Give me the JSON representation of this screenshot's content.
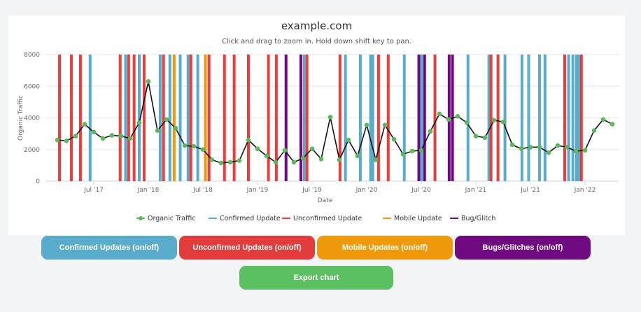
{
  "title": "example.com",
  "subtitle": "Click and drag to zoom in. Hold down shift key to pan.",
  "colors": {
    "traffic_line": "#111111",
    "traffic_marker": "#5cb85c",
    "confirmed": "#5aaccc",
    "unconfirmed": "#ec3c3c",
    "mobile": "#f0990a",
    "bug": "#700a80",
    "export": "#5cbf62"
  },
  "chart_data": {
    "type": "line",
    "xlabel": "Date",
    "ylabel": "Organic Traffic",
    "ylim": [
      0,
      8000
    ],
    "yticks": [
      "0",
      "2000",
      "4000",
      "6000",
      "8000"
    ],
    "xticks": [
      {
        "date": "2017-07",
        "label": "Jul '17"
      },
      {
        "date": "2018-01",
        "label": "Jan '18"
      },
      {
        "date": "2018-07",
        "label": "Jul '18"
      },
      {
        "date": "2019-01",
        "label": "Jan '19"
      },
      {
        "date": "2019-07",
        "label": "Jul '19"
      },
      {
        "date": "2020-01",
        "label": "Jan '20"
      },
      {
        "date": "2020-07",
        "label": "Jul '20"
      },
      {
        "date": "2021-01",
        "label": "Jan '21"
      },
      {
        "date": "2021-07",
        "label": "Jul '21"
      },
      {
        "date": "2022-01",
        "label": "Jan '22"
      }
    ],
    "grid": true,
    "legend": "bottom",
    "series": [
      {
        "name": "Organic Traffic",
        "start": "2017-03",
        "interval": "month",
        "values": [
          2600,
          2550,
          2850,
          3600,
          3100,
          2700,
          2900,
          2850,
          2700,
          3700,
          6300,
          3200,
          3900,
          3350,
          2250,
          2200,
          2000,
          1350,
          1150,
          1200,
          1300,
          2600,
          2050,
          1600,
          1200,
          1950,
          1200,
          1450,
          2050,
          1400,
          4050,
          1350,
          2600,
          1600,
          3550,
          1350,
          3550,
          2650,
          1700,
          1900,
          1950,
          3150,
          4250,
          3900,
          4100,
          3700,
          2850,
          2750,
          3850,
          3750,
          2300,
          2050,
          2150,
          2150,
          1800,
          2250,
          2150,
          1900,
          1950,
          3200,
          3900,
          3600
        ]
      }
    ],
    "updates": [
      [
        "2017-03-08",
        "unconfirmed"
      ],
      [
        "2017-04-17",
        "unconfirmed"
      ],
      [
        "2017-05-17",
        "unconfirmed"
      ],
      [
        "2017-06-19",
        "confirmed"
      ],
      [
        "2017-09-28",
        "unconfirmed"
      ],
      [
        "2017-10-16",
        "confirmed"
      ],
      [
        "2017-10-26",
        "unconfirmed"
      ],
      [
        "2017-11-14",
        "unconfirmed"
      ],
      [
        "2017-12-01",
        "confirmed"
      ],
      [
        "2017-12-17",
        "unconfirmed"
      ],
      [
        "2018-02-10",
        "confirmed"
      ],
      [
        "2018-02-21",
        "unconfirmed"
      ],
      [
        "2018-03-12",
        "confirmed"
      ],
      [
        "2018-03-26",
        "mobile"
      ],
      [
        "2018-04-16",
        "confirmed"
      ],
      [
        "2018-05-12",
        "confirmed"
      ],
      [
        "2018-05-21",
        "unconfirmed"
      ],
      [
        "2018-06-14",
        "confirmed"
      ],
      [
        "2018-07-09",
        "mobile"
      ],
      [
        "2018-07-21",
        "unconfirmed"
      ],
      [
        "2018-09-12",
        "unconfirmed"
      ],
      [
        "2018-10-14",
        "unconfirmed"
      ],
      [
        "2018-12-01",
        "unconfirmed"
      ],
      [
        "2019-02-07",
        "unconfirmed"
      ],
      [
        "2019-03-03",
        "unconfirmed"
      ],
      [
        "2019-04-05",
        "bug"
      ],
      [
        "2019-05-24",
        "bug"
      ],
      [
        "2019-06-05",
        "confirmed"
      ],
      [
        "2019-06-14",
        "unconfirmed"
      ],
      [
        "2019-10-03",
        "unconfirmed"
      ],
      [
        "2019-10-21",
        "confirmed"
      ],
      [
        "2019-12-10",
        "confirmed"
      ],
      [
        "2020-01-14",
        "confirmed"
      ],
      [
        "2020-01-21",
        "confirmed"
      ],
      [
        "2020-02-10",
        "unconfirmed"
      ],
      [
        "2020-03-12",
        "unconfirmed"
      ],
      [
        "2020-05-05",
        "confirmed"
      ],
      [
        "2020-06-23",
        "bug"
      ],
      [
        "2020-07-02",
        "confirmed"
      ],
      [
        "2020-07-12",
        "bug"
      ],
      [
        "2020-08-16",
        "unconfirmed"
      ],
      [
        "2020-10-03",
        "bug"
      ],
      [
        "2020-10-14",
        "bug"
      ],
      [
        "2020-12-05",
        "confirmed"
      ],
      [
        "2021-02-14",
        "confirmed"
      ],
      [
        "2021-02-21",
        "unconfirmed"
      ],
      [
        "2021-03-14",
        "unconfirmed"
      ],
      [
        "2021-04-07",
        "confirmed"
      ],
      [
        "2021-06-03",
        "confirmed"
      ],
      [
        "2021-06-25",
        "confirmed"
      ],
      [
        "2021-08-01",
        "confirmed"
      ],
      [
        "2021-08-19",
        "confirmed"
      ],
      [
        "2021-10-24",
        "unconfirmed"
      ],
      [
        "2021-11-07",
        "confirmed"
      ],
      [
        "2021-11-21",
        "confirmed"
      ],
      [
        "2021-12-03",
        "confirmed"
      ],
      [
        "2021-12-10",
        "confirmed"
      ],
      [
        "2021-12-19",
        "unconfirmed"
      ]
    ]
  },
  "legend": {
    "traffic": "Organic Traffic",
    "confirmed": "Confirmed Update",
    "unconfirmed": "Unconfirmed Update",
    "mobile": "Mobile Update",
    "bug": "Bug/Glitch"
  },
  "buttons": {
    "confirmed": "Confirmed Updates (on/off)",
    "unconfirmed": "Unconfirmed Updates (on/off)",
    "mobile": "Mobile Updates (on/off)",
    "bug": "Bugs/Glitches (on/off)",
    "export": "Export chart"
  }
}
